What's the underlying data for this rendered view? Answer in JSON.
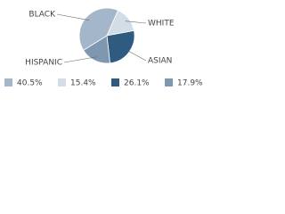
{
  "chart_data": {
    "type": "pie",
    "categories": [
      "BLACK",
      "WHITE",
      "ASIAN",
      "HISPANIC"
    ],
    "values": [
      40.5,
      15.4,
      26.1,
      17.9
    ],
    "value_labels": [
      "40.5%",
      "15.4%",
      "26.1%",
      "17.9%"
    ],
    "colors": [
      "#a3b6ca",
      "#d3dde8",
      "#2f5b80",
      "#7e98b2"
    ]
  }
}
